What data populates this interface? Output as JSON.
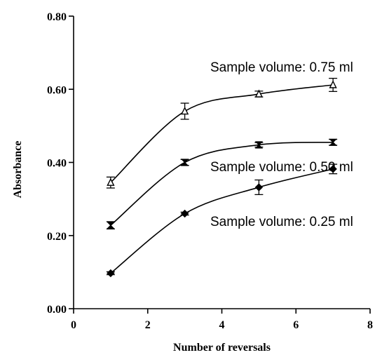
{
  "chart_data": {
    "type": "scatter",
    "title": "",
    "xlabel": "Number of reversals",
    "ylabel": "Absorbance",
    "xlim": [
      0,
      8
    ],
    "ylim": [
      0.0,
      0.8
    ],
    "x_ticks": [
      0,
      2,
      4,
      6,
      8
    ],
    "x_tick_labels": [
      "0",
      "2",
      "4",
      "6",
      "8"
    ],
    "y_ticks": [
      0.0,
      0.2,
      0.4,
      0.6,
      0.8
    ],
    "y_tick_labels": [
      "0.00",
      "0.20",
      "0.40",
      "0.60",
      "0.80"
    ],
    "grid": false,
    "series": [
      {
        "label": "Sample volume: 0.75 ml",
        "marker": "triangle",
        "x": [
          1,
          3,
          5,
          7
        ],
        "y": [
          0.345,
          0.54,
          0.587,
          0.612
        ],
        "err": [
          0.015,
          0.022,
          0.008,
          0.018
        ]
      },
      {
        "label": "Sample volume: 0.50 ml",
        "marker": "hourglass",
        "x": [
          1,
          3,
          5,
          7
        ],
        "y": [
          0.228,
          0.4,
          0.448,
          0.455
        ],
        "err": [
          0.01,
          0.008,
          0.006,
          0.008
        ]
      },
      {
        "label": "Sample volume: 0.25 ml",
        "marker": "diamond",
        "x": [
          1,
          3,
          5,
          7
        ],
        "y": [
          0.097,
          0.26,
          0.332,
          0.382
        ],
        "err": [
          0.004,
          0.004,
          0.02,
          0.013
        ]
      }
    ]
  }
}
